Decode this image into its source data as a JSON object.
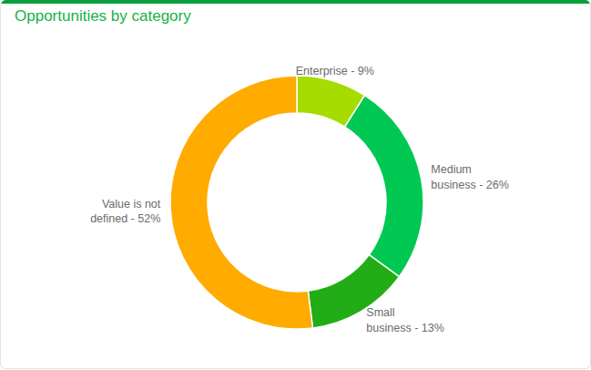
{
  "chart_data": {
    "type": "donut",
    "title": "Opportunities by category",
    "categories": [
      "Enterprise",
      "Medium business",
      "Small business",
      "Value is not defined"
    ],
    "values": [
      9,
      26,
      13,
      52
    ],
    "value_labels": [
      "Enterprise - 9%",
      "Medium business - 26%",
      "Small business - 13%",
      "Value is not defined - 52%"
    ],
    "colors": [
      "#a6dc00",
      "#00c853",
      "#22ad16",
      "#ffab00"
    ],
    "data_labels": true
  }
}
